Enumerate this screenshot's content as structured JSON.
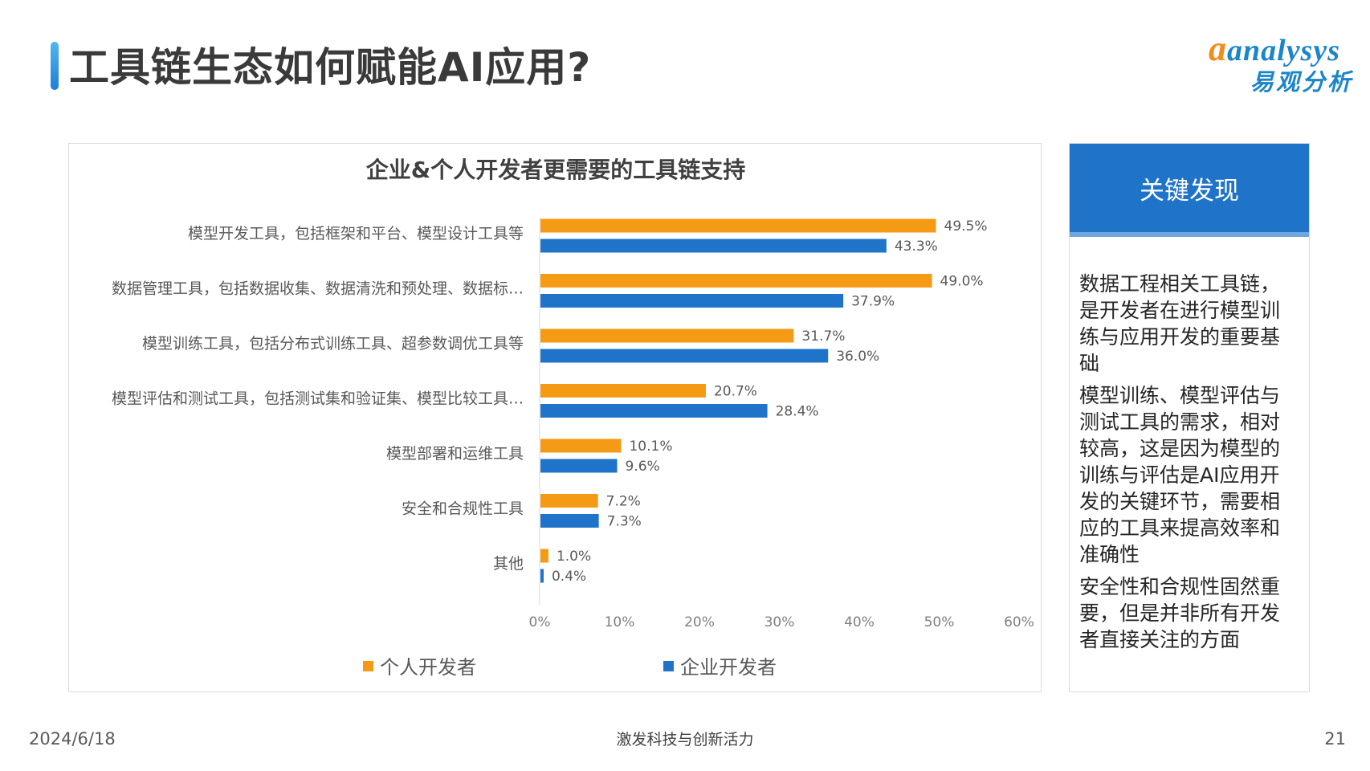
{
  "page": {
    "title": "工具链生态如何赋能AI应用?",
    "logo": {
      "brand": "analysys",
      "brand_cn": "易观分析"
    }
  },
  "colors": {
    "personal": "#f59a14",
    "enterprise": "#1f73c9",
    "accent": "#1f73c9"
  },
  "chart_data": {
    "type": "bar",
    "orientation": "horizontal",
    "title": "企业&个人开发者更需要的工具链支持",
    "categories": [
      "模型开发工具，包括框架和平台、模型设计工具等",
      "数据管理工具，包括数据收集、数据清洗和预处理、数据标…",
      "模型训练工具，包括分布式训练工具、超参数调优工具等",
      "模型评估和测试工具，包括测试集和验证集、模型比较工具…",
      "模型部署和运维工具",
      "安全和合规性工具",
      "其他"
    ],
    "series": [
      {
        "name": "个人开发者",
        "values": [
          49.5,
          49.0,
          31.7,
          20.7,
          10.1,
          7.2,
          1.0
        ],
        "labels": [
          "49.5%",
          "49.0%",
          "31.7%",
          "20.7%",
          "10.1%",
          "7.2%",
          "1.0%"
        ]
      },
      {
        "name": "企业开发者",
        "values": [
          43.3,
          37.9,
          36.0,
          28.4,
          9.6,
          7.3,
          0.4
        ],
        "labels": [
          "43.3%",
          "37.9%",
          "36.0%",
          "28.4%",
          "9.6%",
          "7.3%",
          "0.4%"
        ]
      }
    ],
    "xlim": [
      0,
      60
    ],
    "x_ticks": [
      "0%",
      "10%",
      "20%",
      "30%",
      "40%",
      "50%",
      "60%"
    ],
    "legend_position": "bottom",
    "grid": false
  },
  "findings": {
    "header": "关键发现",
    "points": [
      "数据工程相关工具链，是开发者在进行模型训练与应用开发的重要基础",
      "模型训练、模型评估与测试工具的需求，相对较高，这是因为模型的训练与评估是AI应用开发的关键环节，需要相应的工具来提高效率和准确性",
      "安全性和合规性固然重要，但是并非所有开发者直接关注的方面"
    ]
  },
  "footer": {
    "date": "2024/6/18",
    "center": "激发科技与创新活力",
    "page_number": "21"
  }
}
